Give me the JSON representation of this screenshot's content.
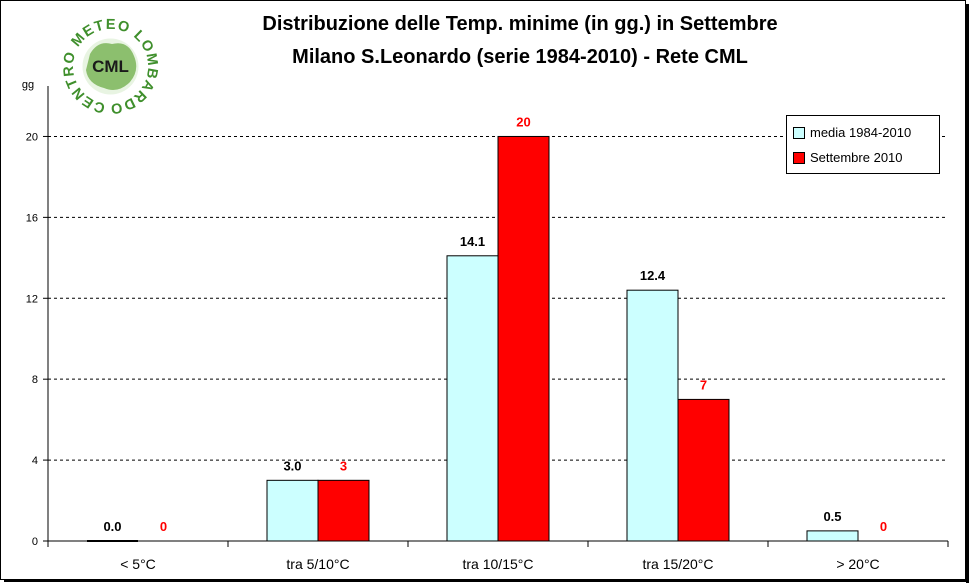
{
  "title_line1": "Distribuzione delle Temp. minime (in gg.) in Settembre",
  "title_line2": "Milano S.Leonardo (serie 1984-2010) - Rete CML",
  "logo": {
    "ring_text": "CENTRO METEO LOMBARDO",
    "center_text": "CML"
  },
  "chart_data": {
    "type": "bar",
    "ylabel": "gg",
    "ylim": [
      0,
      22
    ],
    "yticks": [
      0,
      4,
      8,
      12,
      16,
      20
    ],
    "grid": true,
    "legend_position": "top-right",
    "categories": [
      "< 5°C",
      "tra 5/10°C",
      "tra 10/15°C",
      "tra 15/20°C",
      "> 20°C"
    ],
    "series": [
      {
        "name": "media 1984-2010",
        "color": "#ccffff",
        "label_color": "#000000",
        "values": [
          0.0,
          3.0,
          14.1,
          12.4,
          0.5
        ],
        "labels": [
          "0.0",
          "3.0",
          "14.1",
          "12.4",
          "0.5"
        ]
      },
      {
        "name": "Settembre 2010",
        "color": "#ff0000",
        "label_color": "#ff0000",
        "values": [
          0,
          3,
          20,
          7,
          0
        ],
        "labels": [
          "0",
          "3",
          "20",
          "7",
          "0"
        ]
      }
    ]
  }
}
